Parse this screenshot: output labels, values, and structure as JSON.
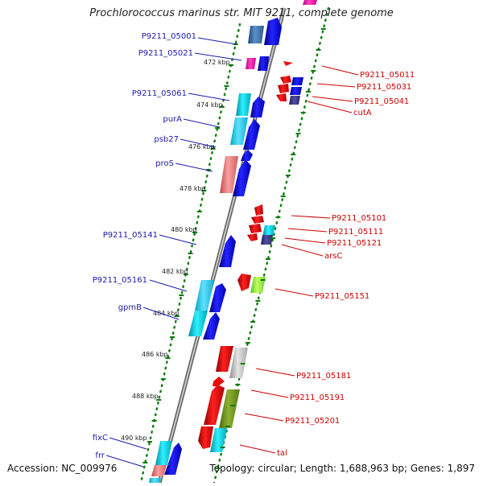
{
  "title": "Prochlorococcus marinus str. MIT 9211, complete genome",
  "footer": {
    "accession": "Accession: NC_009976",
    "summary": "Topology: circular; Length: 1,688,963 bp; Genes: 1,897"
  },
  "colors": {
    "forward_label": "#1a1aa8",
    "reverse_label": "#cc0000",
    "forward_gene": "#1010e8",
    "reverse_gene": "#e80c0c",
    "backbone": "#7a7a7a",
    "tick_dots": "#0a7a0a"
  },
  "scale_ticks": [
    "472 kbp",
    "474 kbp",
    "476 kbp",
    "478 kbp",
    "480 kbp",
    "482 kbp",
    "484 kbp",
    "486 kbp",
    "488 kbp",
    "490 kbp"
  ],
  "forward_labels": [
    "P9211_05001",
    "P9211_05021",
    "P9211_05061",
    "purA",
    "psb27",
    "proS",
    "P9211_05141",
    "P9211_05161",
    "gpmB",
    "fixC",
    "frr"
  ],
  "reverse_labels": [
    "P9211_05011",
    "P9211_05031",
    "P9211_05041",
    "cutA",
    "P9211_05101",
    "P9211_05111",
    "P9211_05121",
    "arsC",
    "P9211_05151",
    "P9211_05181",
    "P9211_05191",
    "P9211_05201",
    "tal"
  ]
}
